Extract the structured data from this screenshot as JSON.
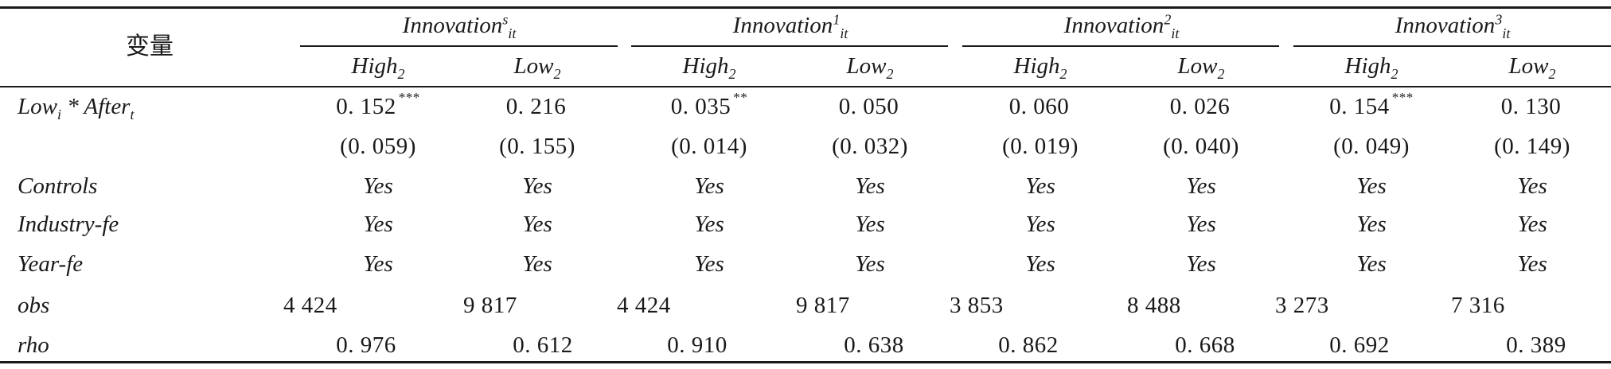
{
  "header": {
    "variable_label": "变量",
    "groups": [
      {
        "base": "Innovation",
        "sup": "s",
        "sub": "it"
      },
      {
        "base": "Innovation",
        "sup": "1",
        "sub": "it"
      },
      {
        "base": "Innovation",
        "sup": "2",
        "sub": "it"
      },
      {
        "base": "Innovation",
        "sup": "3",
        "sub": "it"
      }
    ],
    "subcols": [
      {
        "base": "High",
        "sub": "2"
      },
      {
        "base": "Low",
        "sub": "2"
      },
      {
        "base": "High",
        "sub": "2"
      },
      {
        "base": "Low",
        "sub": "2"
      },
      {
        "base": "High",
        "sub": "2"
      },
      {
        "base": "Low",
        "sub": "2"
      },
      {
        "base": "High",
        "sub": "2"
      },
      {
        "base": "Low",
        "sub": "2"
      }
    ]
  },
  "rows": {
    "interaction": {
      "label_a": "Low",
      "label_a_sub": "i",
      "label_op": " * ",
      "label_b": "After",
      "label_b_sub": "t",
      "coef": [
        {
          "v": "0. 152",
          "s": "***"
        },
        {
          "v": "0. 216",
          "s": ""
        },
        {
          "v": "0. 035",
          "s": "**"
        },
        {
          "v": "0. 050",
          "s": ""
        },
        {
          "v": "0. 060",
          "s": ""
        },
        {
          "v": "0. 026",
          "s": ""
        },
        {
          "v": "0. 154",
          "s": "***"
        },
        {
          "v": "0. 130",
          "s": ""
        }
      ],
      "se": [
        "(0. 059)",
        "(0. 155)",
        "(0. 014)",
        "(0. 032)",
        "(0. 019)",
        "(0. 040)",
        "(0. 049)",
        "(0. 149)"
      ]
    },
    "controls": {
      "label": "Controls",
      "vals": [
        "Yes",
        "Yes",
        "Yes",
        "Yes",
        "Yes",
        "Yes",
        "Yes",
        "Yes"
      ]
    },
    "industry": {
      "label": "Industry-fe",
      "vals": [
        "Yes",
        "Yes",
        "Yes",
        "Yes",
        "Yes",
        "Yes",
        "Yes",
        "Yes"
      ]
    },
    "year": {
      "label": "Year-fe",
      "vals": [
        "Yes",
        "Yes",
        "Yes",
        "Yes",
        "Yes",
        "Yes",
        "Yes",
        "Yes"
      ]
    },
    "obs": {
      "label": "obs",
      "vals": [
        "4 424",
        "9 817",
        "4 424",
        "9 817",
        "3 853",
        "8 488",
        "3 273",
        "7 316"
      ]
    },
    "rho": {
      "label": "rho",
      "vals": [
        "0. 976",
        "0. 612",
        "0. 910",
        "0. 638",
        "0. 862",
        "0. 668",
        "0. 692",
        "0. 389"
      ]
    }
  }
}
